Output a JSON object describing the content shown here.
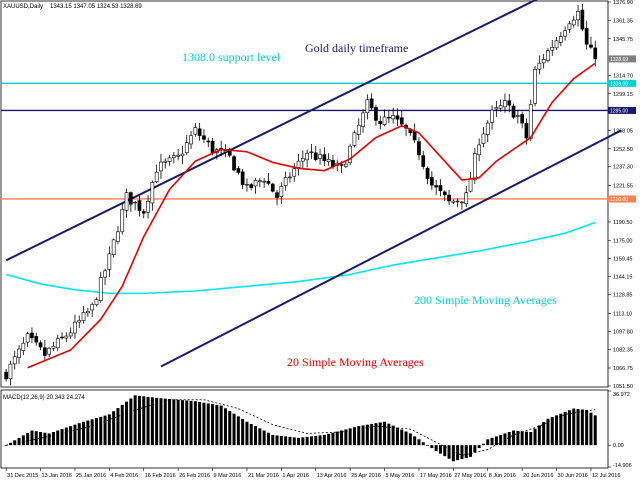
{
  "header": {
    "symbol": "XAUUSD,Daily",
    "ohlc": "1343.15 1347.05 1324.53 1328.69"
  },
  "annotations": {
    "support": "1308.0 support level",
    "timeframe": "Gold daily timeframe",
    "sma200": "200 Simple Moving Averages",
    "sma20": "20 Simple Moving Averages"
  },
  "colors": {
    "channel": "#191970",
    "support": "#00CED1",
    "resistance": "#191970",
    "lower_level": "#FF7F50",
    "sma20": "#E00000",
    "sma200": "#00E5EE",
    "price_tag": "#808080",
    "annotation_support": "#00CED1",
    "annotation_timeframe": "#191970",
    "annotation_sma200": "#00CED1",
    "annotation_sma20": "#E00000"
  },
  "chart_data": {
    "type": "candlestick",
    "price_axis": {
      "ylim": [
        1051.5,
        1376.9
      ],
      "ticks": [
        "1376.90",
        "1361.35",
        "1345.75",
        "1314.70",
        "1299.15",
        "1268.05",
        "1252.50",
        "1237.30",
        "1221.55",
        "1190.50",
        "1175.00",
        "1159.45",
        "1144.15",
        "1128.85",
        "1113.10",
        "1097.80",
        "1082.35",
        "1066.75",
        "1051.50"
      ],
      "tick_values": [
        1376.9,
        1361.35,
        1345.75,
        1314.7,
        1299.15,
        1268.05,
        1252.5,
        1237.3,
        1221.55,
        1190.5,
        1175.0,
        1159.45,
        1144.15,
        1128.85,
        1113.1,
        1097.8,
        1082.35,
        1066.75,
        1051.5
      ],
      "level_tags": [
        {
          "label": "1328.69",
          "value": 1328.69,
          "color": "#808080"
        },
        {
          "label": "1308.00",
          "value": 1308.0,
          "color": "#00CED1"
        },
        {
          "label": "1285.00",
          "value": 1285.0,
          "color": "#191970"
        },
        {
          "label": "1210.00",
          "value": 1210.0,
          "color": "#FF7F50"
        }
      ]
    },
    "x_axis": {
      "labels": [
        "31 Dec 2015",
        "13 Jan 2016",
        "25 Jan 2016",
        "4 Feb 2016",
        "16 Feb 2016",
        "26 Feb 2016",
        "9 Mar 2016",
        "21 Mar 2016",
        "1 Apr 2016",
        "13 Apr 2016",
        "25 Apr 2016",
        "5 May 2016",
        "17 May 2016",
        "27 May 2016",
        "8 Jun 2016",
        "20 Jun 2016",
        "30 Jun 2016",
        "12 Jul 2016"
      ],
      "label_bar_index": [
        0,
        8,
        16,
        24,
        32,
        40,
        48,
        56,
        64,
        72,
        80,
        88,
        96,
        104,
        112,
        120,
        128,
        136
      ]
    },
    "bar_count": 140,
    "price_path": [
      {
        "bar": 0,
        "value": 1062
      },
      {
        "bar": 5,
        "value": 1092
      },
      {
        "bar": 9,
        "value": 1078
      },
      {
        "bar": 15,
        "value": 1098
      },
      {
        "bar": 20,
        "value": 1118
      },
      {
        "bar": 24,
        "value": 1160
      },
      {
        "bar": 28,
        "value": 1212
      },
      {
        "bar": 32,
        "value": 1200
      },
      {
        "bar": 35,
        "value": 1236
      },
      {
        "bar": 40,
        "value": 1245
      },
      {
        "bar": 44,
        "value": 1268
      },
      {
        "bar": 48,
        "value": 1252
      },
      {
        "bar": 52,
        "value": 1245
      },
      {
        "bar": 56,
        "value": 1218
      },
      {
        "bar": 60,
        "value": 1228
      },
      {
        "bar": 63,
        "value": 1212
      },
      {
        "bar": 66,
        "value": 1230
      },
      {
        "bar": 70,
        "value": 1250
      },
      {
        "bar": 74,
        "value": 1242
      },
      {
        "bar": 78,
        "value": 1235
      },
      {
        "bar": 81,
        "value": 1262
      },
      {
        "bar": 84,
        "value": 1290
      },
      {
        "bar": 87,
        "value": 1276
      },
      {
        "bar": 90,
        "value": 1278
      },
      {
        "bar": 93,
        "value": 1268
      },
      {
        "bar": 96,
        "value": 1250
      },
      {
        "bar": 99,
        "value": 1222
      },
      {
        "bar": 103,
        "value": 1207
      },
      {
        "bar": 107,
        "value": 1212
      },
      {
        "bar": 110,
        "value": 1260
      },
      {
        "bar": 113,
        "value": 1282
      },
      {
        "bar": 116,
        "value": 1290
      },
      {
        "bar": 119,
        "value": 1280
      },
      {
        "bar": 121,
        "value": 1262
      },
      {
        "bar": 123,
        "value": 1318
      },
      {
        "bar": 125,
        "value": 1330
      },
      {
        "bar": 128,
        "value": 1345
      },
      {
        "bar": 131,
        "value": 1362
      },
      {
        "bar": 133,
        "value": 1368
      },
      {
        "bar": 135,
        "value": 1340
      },
      {
        "bar": 137,
        "value": 1328.69
      }
    ],
    "sma20_path": [
      {
        "bar": 5,
        "value": 1067
      },
      {
        "bar": 15,
        "value": 1082
      },
      {
        "bar": 22,
        "value": 1108
      },
      {
        "bar": 27,
        "value": 1136
      },
      {
        "bar": 32,
        "value": 1178
      },
      {
        "bar": 38,
        "value": 1218
      },
      {
        "bar": 44,
        "value": 1242
      },
      {
        "bar": 50,
        "value": 1252
      },
      {
        "bar": 56,
        "value": 1250
      },
      {
        "bar": 62,
        "value": 1241
      },
      {
        "bar": 68,
        "value": 1236
      },
      {
        "bar": 74,
        "value": 1234
      },
      {
        "bar": 80,
        "value": 1244
      },
      {
        "bar": 86,
        "value": 1262
      },
      {
        "bar": 92,
        "value": 1272
      },
      {
        "bar": 96,
        "value": 1266
      },
      {
        "bar": 102,
        "value": 1242
      },
      {
        "bar": 106,
        "value": 1226
      },
      {
        "bar": 110,
        "value": 1228
      },
      {
        "bar": 114,
        "value": 1242
      },
      {
        "bar": 118,
        "value": 1252
      },
      {
        "bar": 122,
        "value": 1262
      },
      {
        "bar": 127,
        "value": 1292
      },
      {
        "bar": 132,
        "value": 1312
      },
      {
        "bar": 137,
        "value": 1325
      }
    ],
    "sma200_path": [
      {
        "bar": 0,
        "value": 1146
      },
      {
        "bar": 8,
        "value": 1138
      },
      {
        "bar": 16,
        "value": 1133
      },
      {
        "bar": 24,
        "value": 1130
      },
      {
        "bar": 32,
        "value": 1130
      },
      {
        "bar": 44,
        "value": 1132
      },
      {
        "bar": 56,
        "value": 1136
      },
      {
        "bar": 68,
        "value": 1140
      },
      {
        "bar": 80,
        "value": 1146
      },
      {
        "bar": 90,
        "value": 1154
      },
      {
        "bar": 100,
        "value": 1160
      },
      {
        "bar": 110,
        "value": 1166
      },
      {
        "bar": 120,
        "value": 1173
      },
      {
        "bar": 130,
        "value": 1181
      },
      {
        "bar": 137,
        "value": 1190
      }
    ],
    "horizontal_levels": [
      {
        "value": 1308.0,
        "color": "#00CED1"
      },
      {
        "value": 1285.0,
        "color": "#191970"
      },
      {
        "value": 1210.0,
        "color": "#FF7F50"
      }
    ],
    "channel_lines": [
      {
        "from": {
          "bar": 0,
          "value": 1158
        },
        "to": {
          "bar": 130,
          "value": 1391
        }
      },
      {
        "from": {
          "bar": 36,
          "value": 1068
        },
        "to": {
          "bar": 143,
          "value": 1268
        }
      }
    ],
    "macd": {
      "label": "MACD(12,26,9) 20.343 24.274",
      "ylim": [
        -14.9,
        36.972
      ],
      "ticks": [
        "36.972",
        "0.00",
        "-14.906"
      ],
      "tick_values": [
        36.972,
        0.0,
        -14.906
      ],
      "histogram_path": [
        {
          "bar": 0,
          "value": 0
        },
        {
          "bar": 6,
          "value": 10
        },
        {
          "bar": 10,
          "value": 8
        },
        {
          "bar": 18,
          "value": 16
        },
        {
          "bar": 24,
          "value": 21
        },
        {
          "bar": 30,
          "value": 34
        },
        {
          "bar": 36,
          "value": 32
        },
        {
          "bar": 44,
          "value": 30
        },
        {
          "bar": 50,
          "value": 27
        },
        {
          "bar": 56,
          "value": 16
        },
        {
          "bar": 62,
          "value": 7
        },
        {
          "bar": 68,
          "value": 5
        },
        {
          "bar": 74,
          "value": 7
        },
        {
          "bar": 82,
          "value": 13
        },
        {
          "bar": 88,
          "value": 16
        },
        {
          "bar": 94,
          "value": 8
        },
        {
          "bar": 100,
          "value": -4
        },
        {
          "bar": 104,
          "value": -11
        },
        {
          "bar": 108,
          "value": -8
        },
        {
          "bar": 112,
          "value": 4
        },
        {
          "bar": 118,
          "value": 10
        },
        {
          "bar": 122,
          "value": 9
        },
        {
          "bar": 126,
          "value": 18
        },
        {
          "bar": 132,
          "value": 25
        },
        {
          "bar": 135,
          "value": 24
        },
        {
          "bar": 137,
          "value": 20.343
        }
      ],
      "signal_path": [
        {
          "bar": 0,
          "value": 0
        },
        {
          "bar": 10,
          "value": 6
        },
        {
          "bar": 20,
          "value": 13
        },
        {
          "bar": 30,
          "value": 24
        },
        {
          "bar": 38,
          "value": 31
        },
        {
          "bar": 46,
          "value": 31
        },
        {
          "bar": 54,
          "value": 25
        },
        {
          "bar": 62,
          "value": 14
        },
        {
          "bar": 70,
          "value": 8
        },
        {
          "bar": 78,
          "value": 9
        },
        {
          "bar": 86,
          "value": 13
        },
        {
          "bar": 94,
          "value": 11
        },
        {
          "bar": 100,
          "value": 2
        },
        {
          "bar": 106,
          "value": -7
        },
        {
          "bar": 112,
          "value": -3
        },
        {
          "bar": 118,
          "value": 7
        },
        {
          "bar": 124,
          "value": 13
        },
        {
          "bar": 130,
          "value": 21
        },
        {
          "bar": 137,
          "value": 24.274
        }
      ]
    }
  }
}
